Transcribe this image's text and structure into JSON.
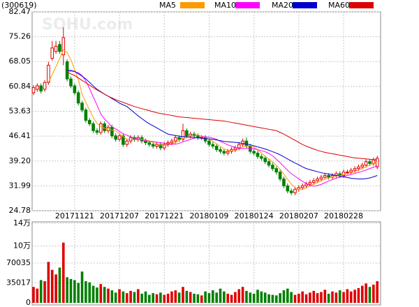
{
  "chart_data": [
    {
      "type": "candlestick",
      "title": "(300619)",
      "watermark": "SOHU.com",
      "up_color": "#e00000",
      "down_color": "#008000",
      "categories": [
        null,
        null,
        null,
        null,
        null,
        null,
        null,
        null,
        null,
        null,
        null,
        "20171121",
        null,
        null,
        null,
        null,
        null,
        null,
        null,
        null,
        null,
        null,
        null,
        "20171207",
        null,
        null,
        null,
        null,
        null,
        null,
        null,
        null,
        null,
        null,
        null,
        "20171221",
        null,
        null,
        null,
        null,
        null,
        null,
        null,
        null,
        null,
        null,
        null,
        "20180109",
        null,
        null,
        null,
        null,
        null,
        null,
        null,
        null,
        null,
        null,
        null,
        "20180124",
        null,
        null,
        null,
        null,
        null,
        null,
        null,
        null,
        null,
        null,
        null,
        "20180207",
        null,
        null,
        null,
        null,
        null,
        null,
        null,
        null,
        null,
        null,
        null,
        "20180228",
        null,
        null,
        null,
        null,
        null,
        null,
        null,
        null,
        null
      ],
      "open": [
        59,
        60,
        61,
        60,
        62,
        69,
        71,
        73,
        70,
        68,
        63,
        61,
        59,
        56,
        54,
        51,
        50,
        48,
        47.5,
        50,
        48,
        49,
        46.5,
        45.5,
        46.5,
        44,
        45,
        46,
        45.5,
        46,
        45,
        44.5,
        44,
        43.5,
        44,
        43,
        44,
        44.5,
        45,
        46,
        45.5,
        48,
        46.5,
        47,
        46.5,
        46,
        46,
        45,
        44,
        43.5,
        42.5,
        42,
        41.5,
        42,
        42.5,
        43,
        44,
        45,
        43.5,
        42,
        41.5,
        40.5,
        40,
        39,
        38,
        37,
        36,
        34,
        32,
        30.5,
        30,
        31,
        31.5,
        32,
        32.5,
        33,
        33.5,
        34,
        34.5,
        35,
        34.5,
        35,
        35.5,
        35,
        36,
        36,
        36.5,
        37,
        37.5,
        38,
        39,
        38.5,
        37.5
      ],
      "high": [
        61.2,
        61.7,
        61.7,
        62.7,
        68,
        74,
        74,
        74,
        78,
        68.7,
        63.7,
        61.7,
        59.7,
        56.7,
        54.7,
        51.7,
        50.7,
        48.7,
        50.7,
        50.7,
        49.7,
        49.7,
        47.2,
        47.2,
        47.2,
        45.7,
        46.7,
        46.7,
        46.7,
        46.7,
        45.7,
        45.2,
        44.7,
        44.7,
        44.7,
        44.7,
        45.2,
        45.7,
        46.7,
        46.7,
        50,
        48.7,
        47.7,
        47.7,
        47.2,
        46.7,
        46.7,
        45.7,
        44.7,
        44.2,
        43.2,
        42.7,
        42.7,
        43.2,
        43.7,
        44.7,
        45.7,
        46,
        44.2,
        42.7,
        42.2,
        41.2,
        40.7,
        39.7,
        38.7,
        37.7,
        36.7,
        34.7,
        32.7,
        31.2,
        31.7,
        32.2,
        32.7,
        33.2,
        33.7,
        34.2,
        34.7,
        35.2,
        35.7,
        35.7,
        35.7,
        36.2,
        36.2,
        36.7,
        36.7,
        37.2,
        37.7,
        38.2,
        38.7,
        39.7,
        39.7,
        40.2,
        40.7
      ],
      "low": [
        58.3,
        59.3,
        58.8,
        59.3,
        61.3,
        68.3,
        70.3,
        70.3,
        67,
        62.3,
        60.3,
        58.3,
        55.3,
        53.3,
        50.3,
        49.3,
        47.3,
        46.8,
        46.8,
        47.3,
        47.3,
        45.8,
        44.8,
        44.8,
        43.3,
        43.3,
        44.3,
        44.8,
        44.8,
        44.3,
        43.8,
        43.3,
        42.8,
        42.8,
        42.3,
        42.3,
        43.3,
        43.8,
        44.3,
        44.8,
        44.8,
        45.8,
        45.8,
        45.8,
        45.3,
        45.3,
        44.3,
        43.3,
        42.8,
        41.8,
        41.3,
        40.8,
        40.8,
        41.3,
        41.8,
        42.3,
        43.3,
        42.8,
        41.3,
        40.8,
        39.8,
        39.3,
        38.3,
        37.3,
        36.3,
        35.3,
        33.3,
        31.3,
        29.8,
        29.3,
        29.3,
        30.3,
        30.8,
        31.3,
        31.8,
        32.3,
        32.8,
        33.3,
        33.8,
        33.8,
        33.8,
        34.3,
        34.3,
        34.3,
        35.3,
        35.3,
        35.8,
        36.3,
        36.8,
        37.3,
        37.8,
        37.8,
        36.8
      ],
      "close": [
        60.5,
        61,
        59.5,
        62,
        67,
        72,
        72.5,
        71,
        75,
        63,
        61,
        59,
        56,
        54,
        51,
        50,
        48,
        47.5,
        50,
        48,
        49,
        46.5,
        45.5,
        46.5,
        44,
        45,
        46,
        45.5,
        46,
        45,
        44.5,
        44,
        43.5,
        44,
        43,
        44,
        44.5,
        45,
        46,
        45.5,
        48,
        46.5,
        47,
        46.5,
        46,
        46,
        45,
        44,
        43.5,
        42.5,
        42,
        41.5,
        42,
        42.5,
        43,
        44,
        45,
        43.5,
        42,
        41.5,
        40.5,
        40,
        39,
        38,
        37,
        36,
        34,
        32,
        30.5,
        30,
        31,
        31.5,
        32,
        32.5,
        33,
        33.5,
        34,
        34.5,
        35,
        34.5,
        35,
        35.5,
        35,
        36,
        36,
        36.5,
        37,
        37.5,
        38,
        39,
        38.5,
        39.5,
        40
      ],
      "series": [
        {
          "name": "MA5",
          "color": "#ff9900",
          "values": [
            null,
            null,
            null,
            null,
            62,
            64.3,
            66.6,
            68.9,
            71.5,
            70.7,
            68.5,
            65.8,
            62.8,
            58.6,
            56.2,
            54,
            51.8,
            50.1,
            49.3,
            48.7,
            48.6,
            48.2,
            47.9,
            47.1,
            46.3,
            45.5,
            45.4,
            45.4,
            45.3,
            45.6,
            45.4,
            45,
            44.6,
            44.2,
            43.8,
            43.7,
            43.8,
            44.1,
            44.6,
            45.2,
            45.8,
            46.2,
            46.6,
            46.7,
            46.8,
            46.4,
            46.1,
            45.5,
            44.9,
            44.2,
            43.4,
            42.7,
            42.3,
            42.1,
            42.2,
            42.6,
            43.3,
            43.6,
            43.6,
            43.2,
            42.5,
            41.5,
            40.6,
            39.8,
            38.9,
            38,
            36.8,
            35.4,
            33.9,
            32.5,
            31.5,
            31,
            31,
            31.4,
            32,
            32.5,
            33,
            33.5,
            34,
            34.3,
            34.6,
            34.9,
            35,
            35.2,
            35.5,
            35.8,
            36.1,
            36.6,
            37,
            37.6,
            38,
            38.5,
            39.1
          ]
        },
        {
          "name": "MA10",
          "color": "#ff00ff",
          "values": [
            null,
            null,
            null,
            null,
            null,
            null,
            null,
            null,
            null,
            65.2,
            65.3,
            65.1,
            64.8,
            64,
            62.4,
            60.2,
            57.8,
            55.4,
            52.9,
            51.4,
            50.3,
            49.1,
            48.5,
            47.8,
            47.1,
            46.7,
            46.2,
            45.9,
            45.6,
            45.3,
            45.1,
            44.9,
            44.9,
            44.7,
            44.5,
            44.4,
            44.2,
            44.1,
            44.1,
            44.3,
            44.8,
            45.1,
            45.5,
            45.8,
            46,
            46.2,
            46.2,
            46.1,
            45.8,
            45.5,
            44.9,
            44.4,
            43.9,
            43.5,
            43.1,
            42.8,
            42.8,
            42.9,
            42.9,
            42.8,
            42.5,
            42.2,
            41.9,
            41.4,
            40.7,
            39.7,
            38.7,
            37.6,
            36.5,
            35.5,
            34.8,
            34,
            33.3,
            32.7,
            32.1,
            31.9,
            32.1,
            32.4,
            32.9,
            33.4,
            33.8,
            34.2,
            34.5,
            34.7,
            35,
            35.3,
            35.6,
            35.9,
            36.2,
            36.6,
            37,
            37.4,
            37.8
          ]
        },
        {
          "name": "MA20",
          "color": "#0000cc",
          "values": [
            null,
            null,
            null,
            null,
            null,
            null,
            null,
            null,
            null,
            65.5,
            65.5,
            65.2,
            64.5,
            63.8,
            63,
            62,
            61,
            60,
            59.3,
            58.6,
            58,
            57.3,
            56.7,
            56,
            55.5,
            55,
            54.1,
            53.2,
            52.3,
            51.5,
            50.7,
            50,
            49.4,
            48.8,
            48.2,
            47.6,
            47,
            46.8,
            46.6,
            46.4,
            46.3,
            46.2,
            46.1,
            46,
            45.9,
            45.8,
            45.7,
            45.6,
            45.5,
            45.3,
            45.1,
            44.9,
            44.8,
            44.7,
            44.6,
            44.5,
            44.3,
            44.1,
            43.9,
            43.6,
            43.3,
            43,
            42.7,
            42.3,
            41.9,
            41.5,
            41,
            40.4,
            39.8,
            39.2,
            38.6,
            38.1,
            37.5,
            37,
            36.7,
            36.4,
            36.1,
            35.8,
            35.6,
            35.4,
            35.2,
            35,
            34.8,
            34.6,
            34.4,
            34.2,
            34.1,
            34,
            34,
            34.1,
            34.3,
            34.6,
            35
          ]
        },
        {
          "name": "MA60",
          "color": "#dd0000",
          "values": [
            null,
            null,
            null,
            null,
            null,
            null,
            null,
            null,
            null,
            65,
            64.5,
            64,
            63.3,
            62.6,
            61.9,
            61.2,
            60.5,
            59.8,
            59.2,
            58.6,
            58,
            57.5,
            57,
            56.6,
            56.2,
            55.8,
            55.4,
            55,
            54.7,
            54.4,
            54.1,
            53.8,
            53.5,
            53.2,
            53,
            52.8,
            52.6,
            52.4,
            52.2,
            52,
            51.9,
            51.8,
            51.7,
            51.6,
            51.5,
            51.4,
            51.3,
            51.2,
            51.1,
            51,
            50.9,
            50.8,
            50.6,
            50.4,
            50.2,
            50,
            49.8,
            49.6,
            49.4,
            49.2,
            49,
            48.8,
            48.6,
            48.4,
            48.2,
            48,
            47.5,
            47,
            46.4,
            45.8,
            45.2,
            44.6,
            44,
            43.5,
            43.1,
            42.7,
            42.3,
            42,
            41.7,
            41.5,
            41.3,
            41.1,
            40.9,
            40.7,
            40.5,
            40.3,
            40.1,
            40,
            39.9,
            39.8,
            39.7,
            39.6,
            39.5
          ]
        }
      ],
      "ylim": [
        24.78,
        82.47
      ],
      "yticks": [
        24.78,
        31.99,
        {
          "value": 39.2,
          "label": "39.20"
        },
        46.41,
        53.63,
        60.84,
        68.05,
        75.26,
        82.47
      ],
      "grid": true
    },
    {
      "type": "bar",
      "values": [
        28000,
        25000,
        40000,
        38000,
        72000,
        58000,
        50000,
        62000,
        106000,
        45000,
        42000,
        40000,
        35000,
        55000,
        38000,
        36000,
        30000,
        27000,
        33000,
        28000,
        25000,
        22000,
        18000,
        24000,
        20000,
        17000,
        21000,
        19000,
        24000,
        16000,
        20000,
        14000,
        17000,
        15000,
        18000,
        14000,
        16000,
        20000,
        22000,
        18000,
        28000,
        21000,
        19000,
        16000,
        15000,
        13000,
        20000,
        17000,
        22000,
        18000,
        25000,
        20000,
        16000,
        14000,
        19000,
        24000,
        28000,
        21000,
        18000,
        16000,
        23000,
        20000,
        18000,
        15000,
        14000,
        13000,
        17000,
        22000,
        25000,
        19000,
        14000,
        16000,
        20000,
        15000,
        18000,
        21000,
        17000,
        19000,
        23000,
        16000,
        20000,
        18000,
        22000,
        19000,
        24000,
        20000,
        23000,
        26000,
        30000,
        34000,
        28000,
        32000,
        38000
      ],
      "ylim": [
        0,
        140000
      ],
      "yticks": [
        0,
        35017,
        70035,
        {
          "value": 100000,
          "label": "10万"
        },
        {
          "value": 140000,
          "label": "14万"
        }
      ],
      "grid": true
    }
  ]
}
